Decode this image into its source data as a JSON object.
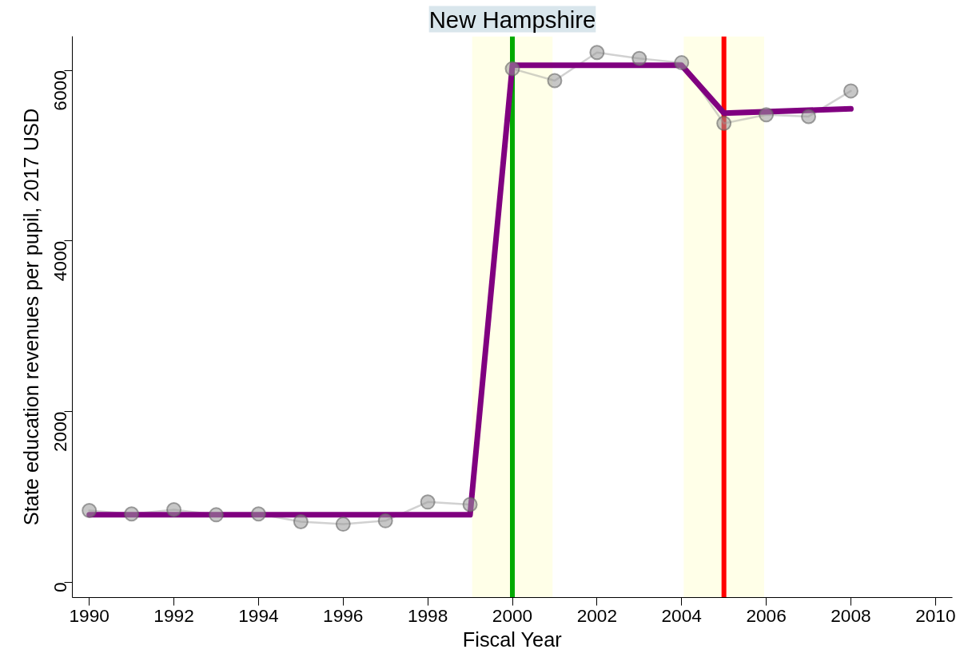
{
  "chart_data": {
    "type": "line",
    "title": "New Hampshire",
    "xlabel": "Fiscal Year",
    "ylabel": "State education revenues per pupil, 2017 USD",
    "series": [
      {
        "color": "#999999",
        "marker": "circle",
        "x": [
          1990,
          1991,
          1992,
          1993,
          1994,
          1995,
          1996,
          1997,
          1998,
          1999,
          2000,
          2001,
          2002,
          2003,
          2004,
          2005,
          2006,
          2007,
          2008
        ],
        "values": [
          840,
          800,
          850,
          790,
          800,
          710,
          680,
          720,
          940,
          910,
          6020,
          5880,
          6210,
          6140,
          6090,
          5380,
          5480,
          5460,
          5760
        ]
      },
      {
        "color": "#800080",
        "marker": "none",
        "x": [
          1990,
          1999,
          2000,
          2004,
          2005,
          2008
        ],
        "values": [
          790,
          790,
          6060,
          6060,
          5500,
          5550
        ]
      }
    ],
    "xlim": [
      1989.6,
      2010.4
    ],
    "ylim": [
      -180,
      6400
    ],
    "xticks": [
      1990,
      1992,
      1994,
      1996,
      1998,
      2000,
      2002,
      2004,
      2006,
      2008,
      2010
    ],
    "yticks": [
      0,
      2000,
      4000,
      6000
    ],
    "bands": [
      {
        "axis": "x",
        "from": 1999.05,
        "to": 2000.95,
        "color": "#ffffe8"
      },
      {
        "axis": "x",
        "from": 2004.05,
        "to": 2005.95,
        "color": "#ffffe8"
      }
    ],
    "ref_lines": [
      {
        "axis": "x",
        "value": 2000,
        "color": "#00aa00"
      },
      {
        "axis": "x",
        "value": 2005,
        "color": "#ff0000"
      }
    ],
    "grid": false
  }
}
